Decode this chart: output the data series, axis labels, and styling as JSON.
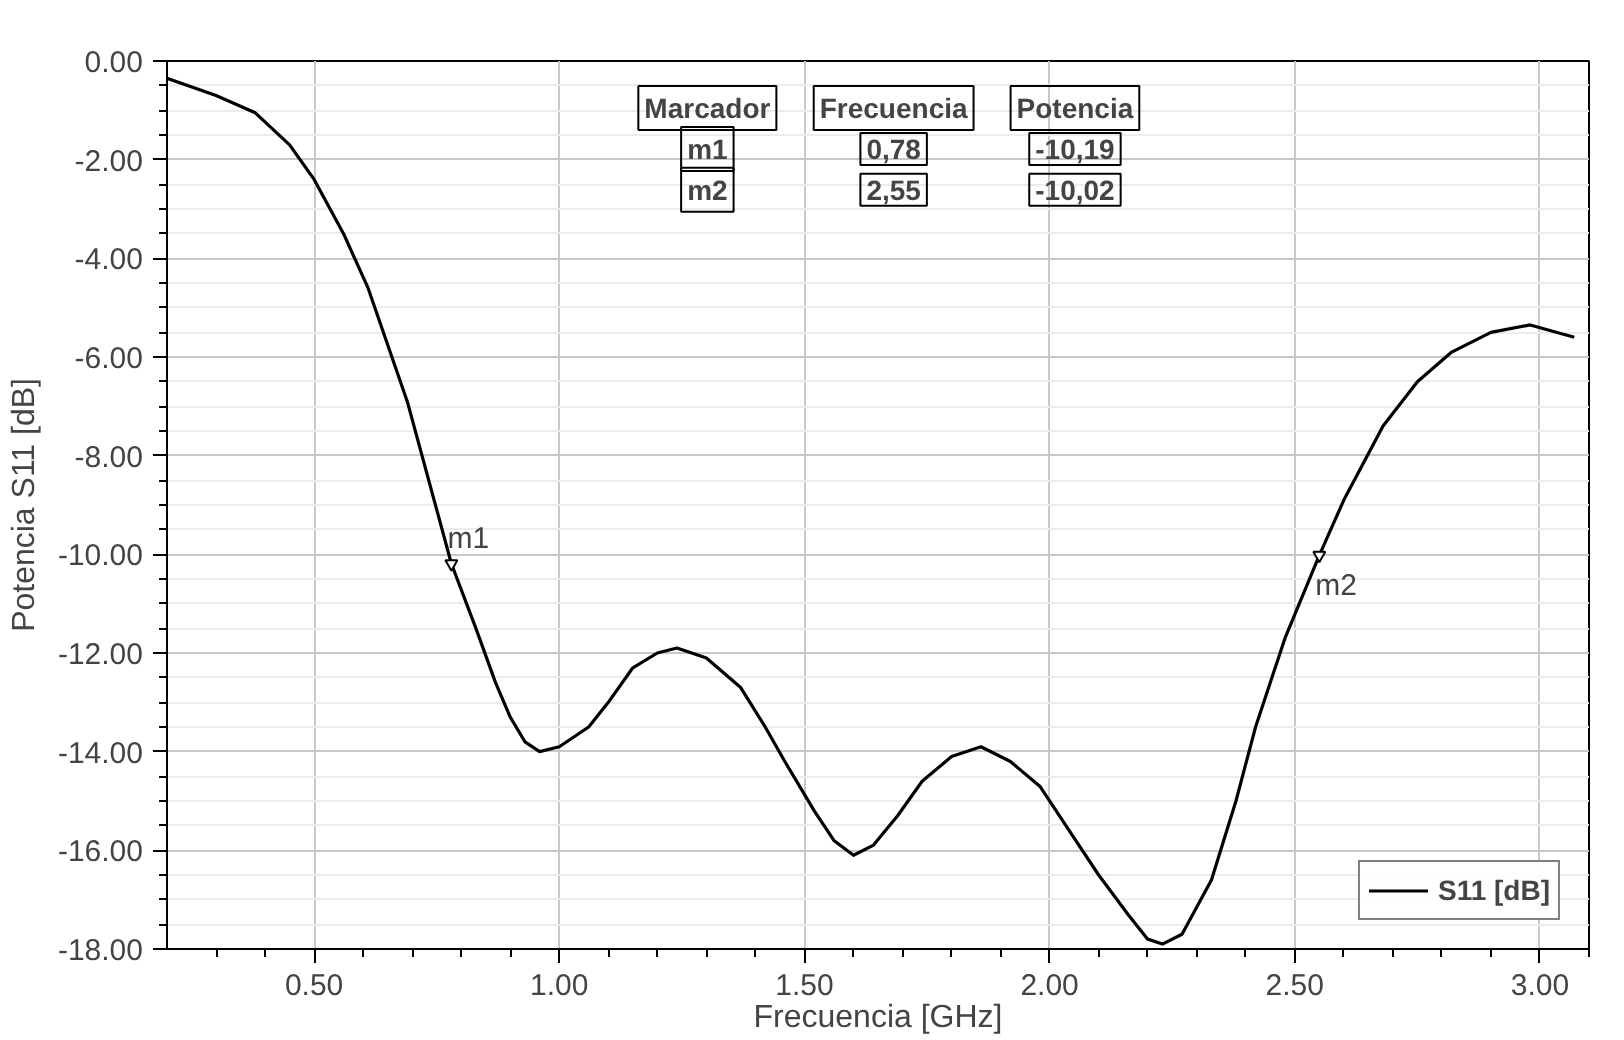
{
  "chart_data": {
    "type": "line",
    "xlabel": "Frecuencia [GHz]",
    "ylabel": "Potencia S11 [dB]",
    "xlim": [
      0.2,
      3.1
    ],
    "ylim": [
      -18,
      0
    ],
    "xticks": [
      {
        "value": 0.5,
        "label": "0.50"
      },
      {
        "value": 1,
        "label": "1.00"
      },
      {
        "value": 1.5,
        "label": "1.50"
      },
      {
        "value": 2,
        "label": "2.00"
      },
      {
        "value": 2.5,
        "label": "2.50"
      },
      {
        "value": 3,
        "label": "3.00"
      }
    ],
    "yticks": [
      {
        "value": 0,
        "label": "0.00"
      },
      {
        "value": -2,
        "label": "-2.00"
      },
      {
        "value": -4,
        "label": "-4.00"
      },
      {
        "value": -6,
        "label": "-6.00"
      },
      {
        "value": -8,
        "label": "-8.00"
      },
      {
        "value": -10,
        "label": "-10.00"
      },
      {
        "value": -12,
        "label": "-12.00"
      },
      {
        "value": -14,
        "label": "-14.00"
      },
      {
        "value": -16,
        "label": "-16.00"
      },
      {
        "value": -18,
        "label": "-18.00"
      }
    ],
    "grid": true,
    "legend": "bottom right",
    "line_style": "solid",
    "marker": "none",
    "series": [
      {
        "name": "S11 [dB]",
        "color": "#000000",
        "x": [
          0.2,
          0.3,
          0.38,
          0.45,
          0.5,
          0.56,
          0.61,
          0.69,
          0.78,
          0.83,
          0.87,
          0.9,
          0.93,
          0.96,
          1.0,
          1.06,
          1.1,
          1.15,
          1.2,
          1.24,
          1.3,
          1.37,
          1.42,
          1.46,
          1.52,
          1.56,
          1.6,
          1.64,
          1.69,
          1.74,
          1.8,
          1.86,
          1.92,
          1.98,
          2.04,
          2.1,
          2.16,
          2.2,
          2.23,
          2.27,
          2.33,
          2.38,
          2.42,
          2.48,
          2.55,
          2.6,
          2.68,
          2.75,
          2.82,
          2.9,
          2.98,
          3.07
        ],
        "values": [
          -0.35,
          -0.7,
          -1.05,
          -1.7,
          -2.4,
          -3.5,
          -4.6,
          -6.9,
          -10.19,
          -11.5,
          -12.6,
          -13.3,
          -13.8,
          -14.0,
          -13.9,
          -13.5,
          -13.0,
          -12.3,
          -12.0,
          -11.9,
          -12.1,
          -12.7,
          -13.5,
          -14.2,
          -15.2,
          -15.8,
          -16.1,
          -15.9,
          -15.3,
          -14.6,
          -14.1,
          -13.9,
          -14.2,
          -14.7,
          -15.6,
          -16.5,
          -17.3,
          -17.8,
          -17.9,
          -17.7,
          -16.6,
          -15.0,
          -13.5,
          -11.7,
          -10.02,
          -8.9,
          -7.4,
          -6.5,
          -5.9,
          -5.5,
          -5.35,
          -5.6
        ]
      }
    ],
    "annotations": [
      "Marcador",
      "Frecuencia",
      "Potencia",
      "m1",
      "0,78",
      "-10,19",
      "m2",
      "2,55",
      "-10,02",
      {
        "text": "m1",
        "x": 0.78,
        "y": -10.19
      },
      {
        "text": "m2",
        "x": 2.55,
        "y": -10.02
      }
    ]
  }
}
